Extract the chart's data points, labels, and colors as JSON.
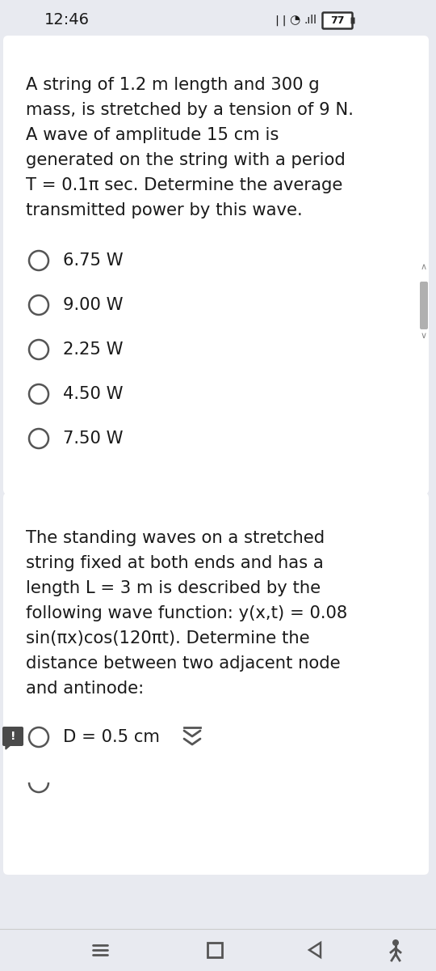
{
  "bg_color": "#e8eaf0",
  "card_color": "#ffffff",
  "status_time": "12:46",
  "q1_text_lines": [
    "A string of 1.2 m length and 300 g",
    "mass, is stretched by a tension of 9 N.",
    "A wave of amplitude 15 cm is",
    "generated on the string with a period",
    "T = 0.1π sec. Determine the average",
    "transmitted power by this wave."
  ],
  "q1_options": [
    "6.75 W",
    "9.00 W",
    "2.25 W",
    "4.50 W",
    "7.50 W"
  ],
  "q2_text_lines": [
    "The standing waves on a stretched",
    "string fixed at both ends and has a",
    "length L = 3 m is described by the",
    "following wave function: y(x,t) = 0.08",
    "sin(πx)cos(120πt). Determine the",
    "distance between two adjacent node",
    "and antinode:"
  ],
  "q2_options": [
    "D = 0.5 cm"
  ],
  "text_color": "#1a1a1a",
  "option_text_color": "#1a1a1a",
  "circle_color": "#555555",
  "font_size_body": 15.2,
  "font_size_status": 13,
  "font_size_option": 15.2
}
